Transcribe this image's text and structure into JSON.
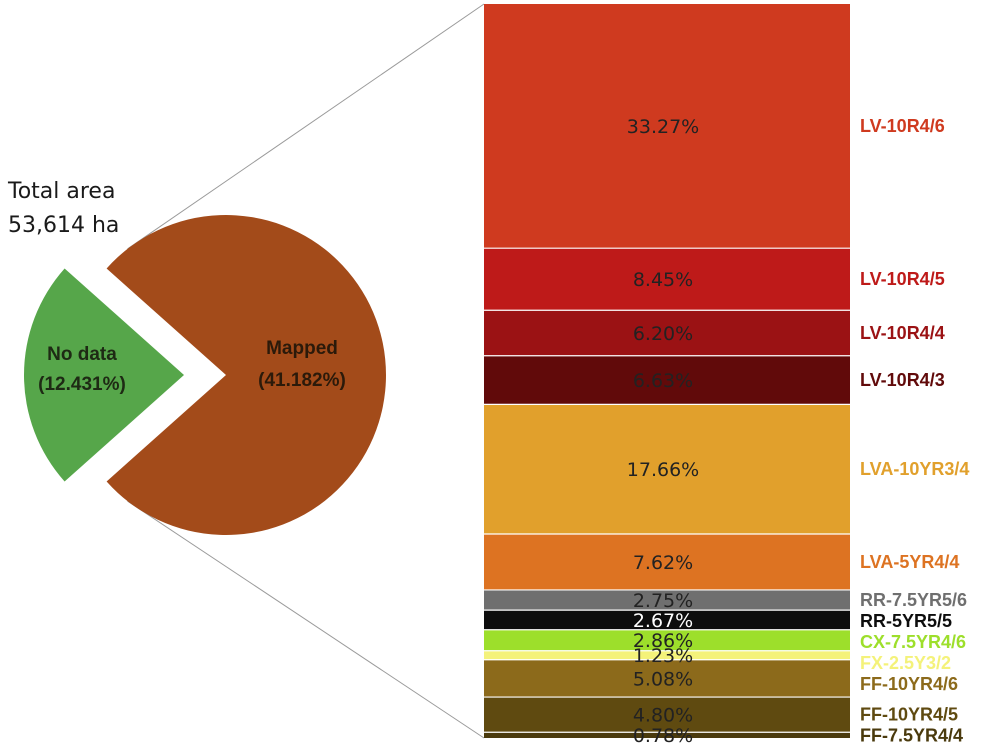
{
  "total": {
    "line1": "Total area",
    "line2": "53,614 ha"
  },
  "chart_data": [
    {
      "type": "pie",
      "slices": [
        {
          "name": "Mapped",
          "label": "(41.182%)",
          "value": 41.182,
          "color": "#a34b1a"
        },
        {
          "name": "No data",
          "label": "(12.431%)",
          "value": 12.431,
          "color": "#56a64a"
        }
      ]
    },
    {
      "type": "bar",
      "stacked": true,
      "categories": [
        "LV-10R4/6",
        "LV-10R4/5",
        "LV-10R4/4",
        "LV-10R4/3",
        "LVA-10YR3/4",
        "LVA-5YR4/4",
        "RR-7.5YR5/6",
        "RR-5YR5/5",
        "CX-7.5YR4/6",
        "FX-2.5Y3/2",
        "FF-10YR4/6",
        "FF-10YR4/5",
        "FF-7.5YR4/4"
      ],
      "values": [
        33.27,
        8.45,
        6.2,
        6.63,
        17.66,
        7.62,
        2.75,
        2.67,
        2.86,
        1.23,
        5.08,
        4.8,
        0.78
      ],
      "value_labels": [
        "33.27%",
        "8.45%",
        "6.20%",
        "6.63%",
        "17.66%",
        "7.62%",
        "2.75%",
        "2.67%",
        "2.86%",
        "1.23%",
        "5.08%",
        "4.80%",
        "0.78%"
      ],
      "colors": [
        "#cf3a1f",
        "#be1a19",
        "#9b1214",
        "#610a0a",
        "#e1a02c",
        "#dd7322",
        "#6f6f6f",
        "#0d0d0d",
        "#9ddf2b",
        "#f4f27a",
        "#8c6a1b",
        "#5f4a10",
        "#4a3a0d"
      ],
      "label_colors": [
        "#cf3a1f",
        "#be1a19",
        "#9b1214",
        "#610a0a",
        "#e1a02c",
        "#dd7322",
        "#6f6f6f",
        "#0d0d0d",
        "#9ddf2b",
        "#f4f27a",
        "#8c6a1b",
        "#5f4a10",
        "#4a3a0d"
      ],
      "value_label_colors": [
        "#222222",
        "#222222",
        "#222222",
        "#222222",
        "#222222",
        "#222222",
        "#222222",
        "#ffffff",
        "#222222",
        "#222222",
        "#222222",
        "#222222",
        "#222222"
      ]
    }
  ]
}
